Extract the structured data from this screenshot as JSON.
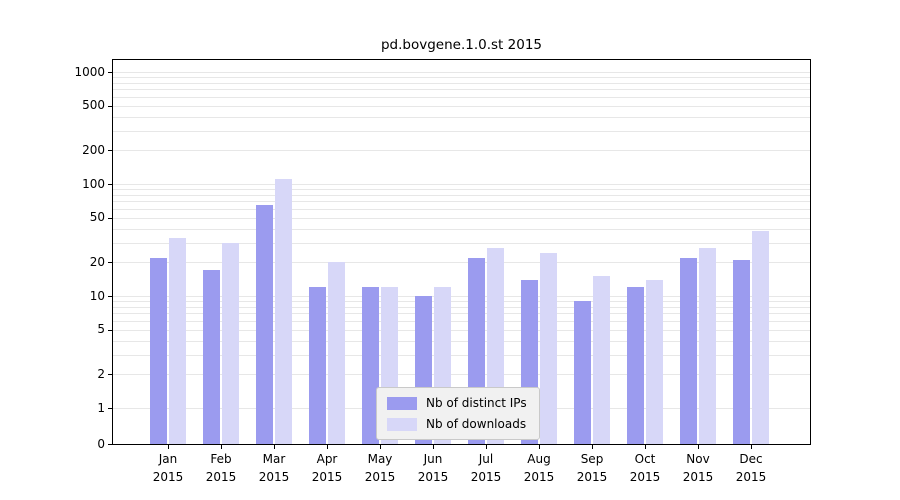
{
  "chart_data": {
    "type": "bar",
    "title": "pd.bovgene.1.0.st 2015",
    "year": "2015",
    "categories": [
      "Jan",
      "Feb",
      "Mar",
      "Apr",
      "May",
      "Jun",
      "Jul",
      "Aug",
      "Sep",
      "Oct",
      "Nov",
      "Dec"
    ],
    "series": [
      {
        "name": "Nb of distinct IPs",
        "color": "#9b9bef",
        "values": [
          22,
          17,
          65,
          12,
          12,
          10,
          22,
          14,
          9,
          12,
          22,
          21
        ]
      },
      {
        "name": "Nb of downloads",
        "color": "#d7d7f8",
        "values": [
          33,
          30,
          110,
          20,
          12,
          12,
          27,
          24,
          15,
          14,
          27,
          38
        ]
      }
    ],
    "yscale": "log",
    "ylim": [
      0,
      1300
    ],
    "yticks": [
      0,
      1,
      2,
      5,
      10,
      20,
      50,
      100,
      200,
      500,
      1000
    ],
    "gridline_values": [
      1,
      2,
      3,
      4,
      5,
      6,
      7,
      8,
      9,
      10,
      20,
      30,
      40,
      50,
      60,
      70,
      80,
      90,
      100,
      200,
      300,
      400,
      500,
      600,
      700,
      800,
      900,
      1000
    ],
    "legend_position": "lower center",
    "grid": "horizontal"
  }
}
